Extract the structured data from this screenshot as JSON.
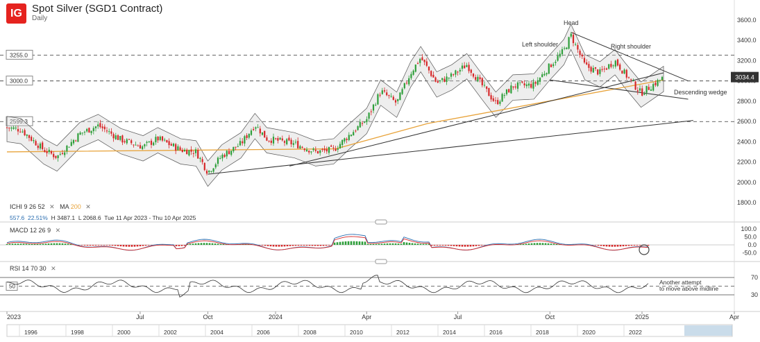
{
  "header": {
    "logo": "IG",
    "title": "Spot Silver (SGD1 Contract)",
    "timeframe": "Daily"
  },
  "ichimoku": {
    "label": "ICHI",
    "p1": "9",
    "p2": "26",
    "p3": "52",
    "ma_label": "MA",
    "ma_period": "200",
    "stats": {
      "value": "557.6",
      "pct": "22.51%",
      "high": "H 3487.1",
      "low": "L 2068.6",
      "range": "Tue 11 Apr 2023 - Thu 10 Apr 2025"
    }
  },
  "macd": {
    "label": "MACD",
    "p1": "12",
    "p2": "26",
    "p3": "9"
  },
  "rsi": {
    "label": "RSI",
    "p1": "14",
    "p2": "70",
    "p3": "30",
    "mid": "50"
  },
  "annotations": {
    "head": "Head",
    "left_shoulder": "Left shoulder",
    "right_shoulder": "Right shoulder",
    "wedge": "Descending wedge",
    "rsi_note_1": "Another attempt",
    "rsi_note_2": "to move above midline"
  },
  "price_labels": {
    "l3255": "3255.0",
    "l3000": "3000.0",
    "l2599": "2599.3",
    "last": "3034.4"
  },
  "colors": {
    "up": "#2e9e3a",
    "down": "#d62728",
    "ma": "#e8a33a",
    "cloud": "#cfcfcf",
    "last_bg": "#333333"
  },
  "chart_data": {
    "type": "candlestick",
    "y_axis": {
      "ylim": [
        1650,
        3700
      ],
      "ticks": [
        1800,
        2000,
        2200,
        2400,
        2600,
        2800,
        3000,
        3200,
        3400,
        3600
      ],
      "tick_labels": [
        "1800.0",
        "2000.0",
        "2200.0",
        "2400.0",
        "2600.0",
        "2800.0",
        "3000.0",
        "3200.0",
        "3400.0",
        "3600.0"
      ]
    },
    "x_axis": {
      "labels": [
        "2023",
        "Jul",
        "Oct",
        "2024",
        "Apr",
        "Jul",
        "Oct",
        "2025",
        "Apr"
      ]
    },
    "nav_years": [
      "1996",
      "1998",
      "2000",
      "2002",
      "2004",
      "2006",
      "2008",
      "2010",
      "2012",
      "2014",
      "2016",
      "2018",
      "2020",
      "2022"
    ],
    "horizontal_levels": [
      3255.0,
      3000.0,
      2599.3
    ],
    "price_path": [
      [
        "2023-01-01",
        2540
      ],
      [
        "2023-01-20",
        2520
      ],
      [
        "2023-02-20",
        2320
      ],
      [
        "2023-03-10",
        2250
      ],
      [
        "2023-04-10",
        2480
      ],
      [
        "2023-05-05",
        2560
      ],
      [
        "2023-06-05",
        2420
      ],
      [
        "2023-07-05",
        2350
      ],
      [
        "2023-07-25",
        2430
      ],
      [
        "2023-08-25",
        2320
      ],
      [
        "2023-09-15",
        2300
      ],
      [
        "2023-10-01",
        2100
      ],
      [
        "2023-10-20",
        2260
      ],
      [
        "2023-11-15",
        2380
      ],
      [
        "2023-12-04",
        2570
      ],
      [
        "2023-12-20",
        2430
      ],
      [
        "2024-01-20",
        2380
      ],
      [
        "2024-02-10",
        2300
      ],
      [
        "2024-02-28",
        2320
      ],
      [
        "2024-03-15",
        2470
      ],
      [
        "2024-04-01",
        2620
      ],
      [
        "2024-04-15",
        2900
      ],
      [
        "2024-05-01",
        2780
      ],
      [
        "2024-05-15",
        3080
      ],
      [
        "2024-05-25",
        3230
      ],
      [
        "2024-06-10",
        2980
      ],
      [
        "2024-06-25",
        3050
      ],
      [
        "2024-07-10",
        3160
      ],
      [
        "2024-07-25",
        2960
      ],
      [
        "2024-08-08",
        2780
      ],
      [
        "2024-08-25",
        2950
      ],
      [
        "2024-09-15",
        2960
      ],
      [
        "2024-10-01",
        3150
      ],
      [
        "2024-10-15",
        3300
      ],
      [
        "2024-10-22",
        3450
      ],
      [
        "2024-11-05",
        3150
      ],
      [
        "2024-11-20",
        3080
      ],
      [
        "2024-12-05",
        3200
      ],
      [
        "2024-12-15",
        3070
      ],
      [
        "2024-12-31",
        2880
      ],
      [
        "2025-01-10",
        2950
      ],
      [
        "2025-01-22",
        3034.4
      ]
    ],
    "ichimoku_cloud_range": [
      2320,
      2700
    ],
    "ma200_path": [
      [
        "2023-01-01",
        2300
      ],
      [
        "2024-03-01",
        2330
      ],
      [
        "2024-06-01",
        2580
      ],
      [
        "2025-01-22",
        3010
      ]
    ],
    "trendlines": {
      "lower_support": [
        [
          "2023-10-01",
          2080
        ],
        [
          "2025-02-20",
          2610
        ]
      ],
      "rising_support": [
        [
          "2024-01-15",
          2160
        ],
        [
          "2025-01-22",
          3080
        ]
      ],
      "wedge_upper": [
        [
          "2024-10-22",
          3480
        ],
        [
          "2025-02-15",
          3000
        ]
      ],
      "wedge_lower": [
        [
          "2024-10-01",
          3010
        ],
        [
          "2025-02-15",
          2820
        ]
      ]
    },
    "macd": {
      "ticks": [
        100,
        50,
        0,
        -50
      ],
      "tick_labels": [
        "100.0",
        "50.0",
        "0.0",
        "-50.0"
      ],
      "ylim": [
        -90,
        130
      ]
    },
    "rsi": {
      "ticks": [
        70,
        30
      ],
      "tick_labels": [
        "70",
        "30"
      ],
      "levels": [
        70,
        50,
        30
      ],
      "ylim": [
        15,
        85
      ]
    },
    "last_price": 3034.4
  }
}
